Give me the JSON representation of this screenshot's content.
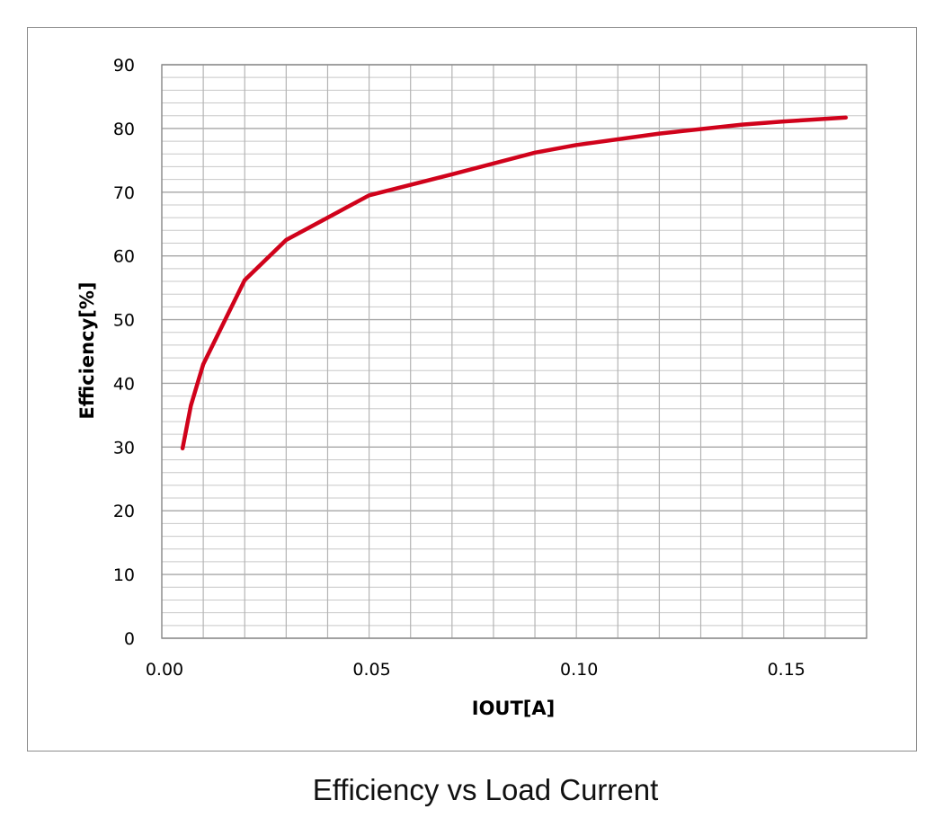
{
  "caption": "Efficiency vs Load Current",
  "chart_data": {
    "type": "line",
    "title": "",
    "xlabel": "IOUT[A]",
    "ylabel": "Efficiency[%]",
    "xlim": [
      0,
      0.17
    ],
    "ylim": [
      0,
      90
    ],
    "x_major_ticks": [
      0,
      0.01,
      0.02,
      0.03,
      0.04,
      0.05,
      0.06,
      0.07,
      0.08,
      0.09,
      0.1,
      0.11,
      0.12,
      0.13,
      0.14,
      0.15,
      0.16,
      0.17
    ],
    "x_tick_labels": [
      {
        "value": 0,
        "label": "0.00"
      },
      {
        "value": 0.05,
        "label": "0.05"
      },
      {
        "value": 0.1,
        "label": "0.10"
      },
      {
        "value": 0.15,
        "label": "0.15"
      }
    ],
    "y_tick_labels": [
      {
        "value": 0,
        "label": "0"
      },
      {
        "value": 10,
        "label": "10"
      },
      {
        "value": 20,
        "label": "20"
      },
      {
        "value": 30,
        "label": "30"
      },
      {
        "value": 40,
        "label": "40"
      },
      {
        "value": 50,
        "label": "50"
      },
      {
        "value": 60,
        "label": "60"
      },
      {
        "value": 70,
        "label": "70"
      },
      {
        "value": 80,
        "label": "80"
      },
      {
        "value": 90,
        "label": "90"
      }
    ],
    "y_minor_step": 2,
    "grid": true,
    "series": [
      {
        "name": "Efficiency",
        "color": "#d0021b",
        "x": [
          0.005,
          0.007,
          0.01,
          0.02,
          0.03,
          0.04,
          0.05,
          0.07,
          0.09,
          0.1,
          0.12,
          0.14,
          0.15,
          0.165
        ],
        "y": [
          29.8,
          36.5,
          43.0,
          56.2,
          62.5,
          66.0,
          69.5,
          72.8,
          76.2,
          77.4,
          79.2,
          80.6,
          81.1,
          81.7
        ]
      }
    ]
  }
}
